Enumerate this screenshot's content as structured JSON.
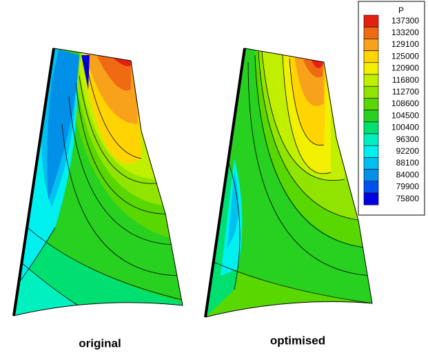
{
  "legend": {
    "title": "P",
    "levels": [
      137300,
      133200,
      129100,
      125000,
      120900,
      116800,
      112700,
      108600,
      104500,
      100400,
      96300,
      92200,
      88100,
      84000,
      79900,
      75800
    ],
    "colors": [
      "#e62010",
      "#f06a14",
      "#f7a21a",
      "#ffd400",
      "#f0f000",
      "#c0f000",
      "#90e400",
      "#58d800",
      "#28d020",
      "#00e070",
      "#00f0c0",
      "#00f0f0",
      "#00c0f0",
      "#0090e8",
      "#0050f0",
      "#0000e0"
    ]
  },
  "panels": [
    {
      "label": "original"
    },
    {
      "label": "optimised"
    }
  ]
}
